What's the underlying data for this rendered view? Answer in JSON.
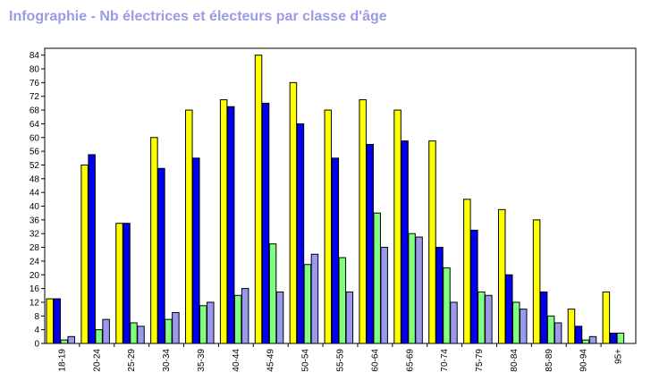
{
  "page": {
    "title": "Infographie - Nb électrices et électeurs par classe d'âge"
  },
  "colors": {
    "title": "#9a9ae6"
  },
  "chart_data": {
    "type": "bar",
    "title": "",
    "xlabel": "",
    "ylabel": "",
    "ylim": [
      0,
      86
    ],
    "yticks": [
      0,
      4,
      8,
      12,
      16,
      20,
      24,
      28,
      32,
      36,
      40,
      44,
      48,
      52,
      56,
      60,
      64,
      68,
      72,
      76,
      80,
      84
    ],
    "grid": false,
    "legend": "none",
    "categories": [
      "18-19",
      "20-24",
      "25-29",
      "30-34",
      "35-39",
      "40-44",
      "45-49",
      "50-54",
      "55-59",
      "60-64",
      "65-69",
      "70-74",
      "75-79",
      "80-84",
      "85-89",
      "90-94",
      "95+"
    ],
    "series": [
      {
        "color": "#ffff00",
        "values": [
          13,
          52,
          35,
          60,
          68,
          71,
          84,
          76,
          68,
          71,
          68,
          59,
          42,
          39,
          36,
          10,
          15
        ]
      },
      {
        "color": "#0000ee",
        "values": [
          13,
          55,
          35,
          51,
          54,
          69,
          70,
          64,
          54,
          58,
          59,
          28,
          33,
          20,
          15,
          5,
          3
        ]
      },
      {
        "color": "#80ff80",
        "values": [
          1,
          4,
          6,
          7,
          11,
          14,
          29,
          23,
          25,
          38,
          32,
          22,
          15,
          12,
          8,
          1,
          3
        ]
      },
      {
        "color": "#9999ee",
        "values": [
          2,
          7,
          5,
          9,
          12,
          16,
          15,
          26,
          15,
          28,
          31,
          12,
          14,
          10,
          6,
          2,
          0
        ]
      }
    ]
  }
}
